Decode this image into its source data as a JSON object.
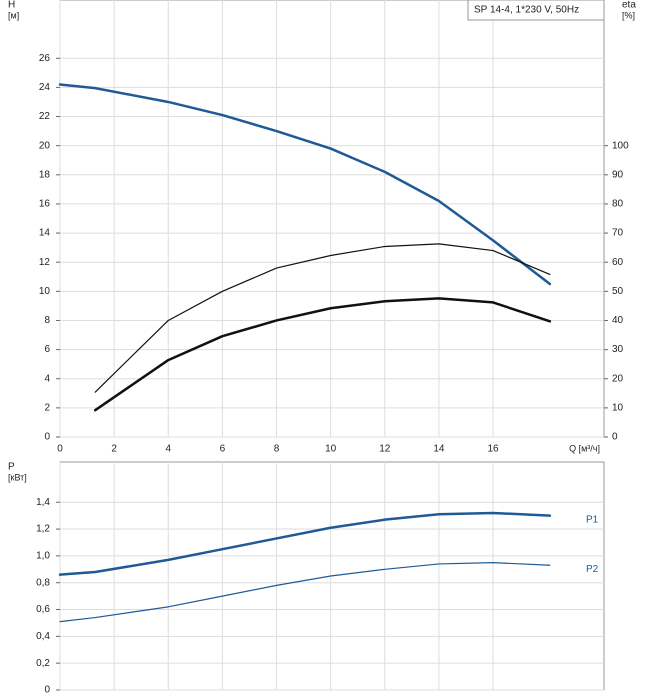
{
  "chart_data": [
    {
      "type": "line",
      "annotation": "SP 14-4, 1*230 V, 50Hz",
      "y_label": [
        "H",
        "[м]"
      ],
      "y2_label": [
        "eta",
        "[%]"
      ],
      "x_label": "Q [м³/ч]",
      "x": [
        0,
        1.3,
        4,
        6,
        8,
        10,
        12,
        14,
        16,
        18.1
      ],
      "xlim": [
        0,
        20.1
      ],
      "xticks": [
        0,
        2,
        4,
        6,
        8,
        10,
        12,
        14,
        16
      ],
      "ylim": [
        0,
        30
      ],
      "yticks": [
        0,
        2,
        4,
        6,
        8,
        10,
        12,
        14,
        16,
        18,
        20,
        22,
        24,
        26
      ],
      "y2lim": [
        0,
        150
      ],
      "y2ticks": [
        0,
        10,
        20,
        30,
        40,
        50,
        60,
        70,
        80,
        90,
        100
      ],
      "grid": true,
      "series": [
        {
          "color": "#1f5a96",
          "width": 2.5,
          "values": [
            24.2,
            23.95,
            23.0,
            22.1,
            21.0,
            19.8,
            18.2,
            16.2,
            13.5,
            10.5
          ]
        },
        {
          "color": "#111111",
          "width": 1.2,
          "axis": "y2",
          "values": [
            null,
            15.4,
            40,
            50,
            58,
            62.3,
            65.4,
            66.3,
            64,
            55.8
          ]
        },
        {
          "color": "#111111",
          "width": 2.5,
          "axis": "y2",
          "values": [
            null,
            9.2,
            26.4,
            34.6,
            40,
            44.2,
            46.6,
            47.6,
            46.2,
            39.7
          ]
        }
      ]
    },
    {
      "type": "line",
      "y_label": [
        "P",
        "[кВт]"
      ],
      "x": [
        0,
        1.3,
        4,
        6,
        8,
        10,
        12,
        14,
        16,
        18.1
      ],
      "xlim": [
        0,
        20.1
      ],
      "xticks": [
        0,
        2,
        4,
        6,
        8,
        10,
        12,
        14,
        16
      ],
      "ylim": [
        0,
        1.7
      ],
      "yticks": [
        0,
        {
          "value": 0.2,
          "label": "0,2"
        },
        {
          "value": 0.4,
          "label": "0,4"
        },
        {
          "value": 0.6,
          "label": "0,6"
        },
        {
          "value": 0.8,
          "label": "0,8"
        },
        {
          "value": 1.0,
          "label": "1,0"
        },
        {
          "value": 1.2,
          "label": "1,2"
        },
        {
          "value": 1.4,
          "label": "1,4"
        }
      ],
      "grid": true,
      "series": [
        {
          "name": "P1",
          "color": "#1f5a96",
          "width": 2.5,
          "values": [
            0.86,
            0.88,
            0.97,
            1.05,
            1.13,
            1.21,
            1.27,
            1.31,
            1.32,
            1.3
          ]
        },
        {
          "name": "P2",
          "color": "#1f5a96",
          "width": 1.2,
          "values": [
            0.51,
            0.54,
            0.62,
            0.7,
            0.78,
            0.85,
            0.9,
            0.94,
            0.95,
            0.93
          ]
        }
      ]
    }
  ]
}
